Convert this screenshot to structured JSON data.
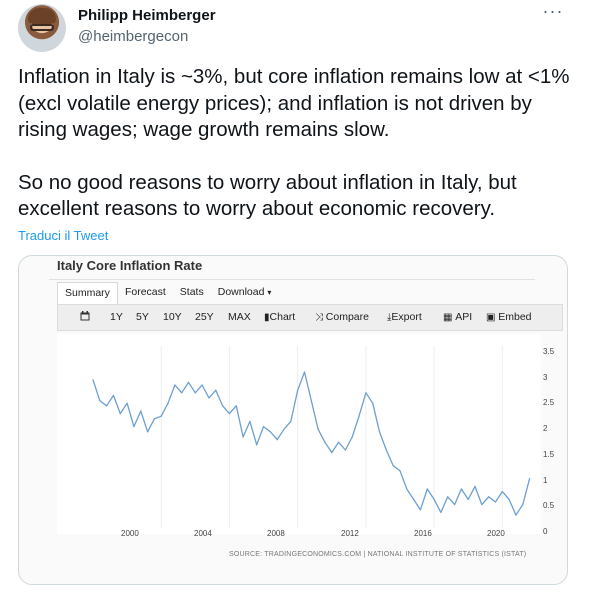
{
  "tweet": {
    "author_name": "Philipp Heimberger",
    "author_handle": "@heimbergecon",
    "more_label": "···",
    "paragraph1": "Inflation in Italy is ~3%, but core inflation remains low at <1% (excl volatile energy prices); and inflation is not driven by rising wages; wage growth remains slow.",
    "paragraph2": "So no good reasons to worry about inflation in Italy, but excellent reasons to worry about economic recovery.",
    "translate_label": "Traduci il Tweet"
  },
  "card": {
    "title": "Italy Core Inflation Rate",
    "tabs": [
      "Summary",
      "Forecast",
      "Stats",
      "Download"
    ],
    "download_caret": "▾",
    "toolbar": {
      "calendar_icon": "calendar-icon",
      "ranges": [
        "1Y",
        "5Y",
        "10Y",
        "25Y",
        "MAX"
      ],
      "chart_label": "Chart",
      "compare_label": "Compare",
      "export_label": "Export",
      "api_label": "API",
      "embed_label": "Embed"
    },
    "source": "SOURCE: TRADINGECONOMICS.COM | NATIONAL INSTITUTE OF STATISTICS (ISTAT)",
    "colors": {
      "line": "#6d9fd0",
      "plot_bg": "#ffffff",
      "grid": "#eeeeee"
    }
  },
  "chart_data": {
    "type": "line",
    "title": "Italy Core Inflation Rate",
    "x_ticks": [
      "2000",
      "2004",
      "2008",
      "2012",
      "2016",
      "2020"
    ],
    "y_ticks": [
      "0",
      "0.5",
      "1",
      "1.5",
      "2",
      "2.5",
      "3",
      "3.5"
    ],
    "ylim": [
      0,
      3.5
    ],
    "xlim": [
      1996.0,
      2021.8
    ],
    "grid": false,
    "x": [
      1996.0,
      1996.4,
      1996.8,
      1997.2,
      1997.6,
      1998.0,
      1998.4,
      1998.8,
      1999.2,
      1999.6,
      2000.0,
      2000.4,
      2000.8,
      2001.2,
      2001.6,
      2002.0,
      2002.4,
      2002.8,
      2003.2,
      2003.6,
      2004.0,
      2004.4,
      2004.8,
      2005.2,
      2005.6,
      2006.0,
      2006.4,
      2006.8,
      2007.2,
      2007.6,
      2008.0,
      2008.4,
      2008.8,
      2009.2,
      2009.6,
      2010.0,
      2010.4,
      2010.8,
      2011.2,
      2011.6,
      2012.0,
      2012.4,
      2012.8,
      2013.2,
      2013.6,
      2014.0,
      2014.4,
      2014.8,
      2015.2,
      2015.6,
      2016.0,
      2016.4,
      2016.8,
      2017.2,
      2017.6,
      2018.0,
      2018.4,
      2018.8,
      2019.2,
      2019.6,
      2020.0,
      2020.4,
      2020.8,
      2021.2,
      2021.6
    ],
    "y": [
      2.85,
      2.45,
      2.35,
      2.55,
      2.2,
      2.4,
      1.95,
      2.25,
      1.85,
      2.1,
      2.15,
      2.4,
      2.75,
      2.6,
      2.8,
      2.6,
      2.75,
      2.5,
      2.65,
      2.35,
      2.2,
      2.35,
      1.75,
      2.05,
      1.6,
      1.95,
      1.85,
      1.7,
      1.9,
      2.05,
      2.65,
      3.0,
      2.45,
      1.9,
      1.65,
      1.45,
      1.65,
      1.5,
      1.75,
      2.15,
      2.6,
      2.4,
      1.85,
      1.5,
      1.2,
      1.1,
      0.75,
      0.55,
      0.35,
      0.75,
      0.55,
      0.3,
      0.6,
      0.45,
      0.75,
      0.55,
      0.8,
      0.45,
      0.6,
      0.5,
      0.7,
      0.55,
      0.25,
      0.45,
      0.95
    ]
  }
}
